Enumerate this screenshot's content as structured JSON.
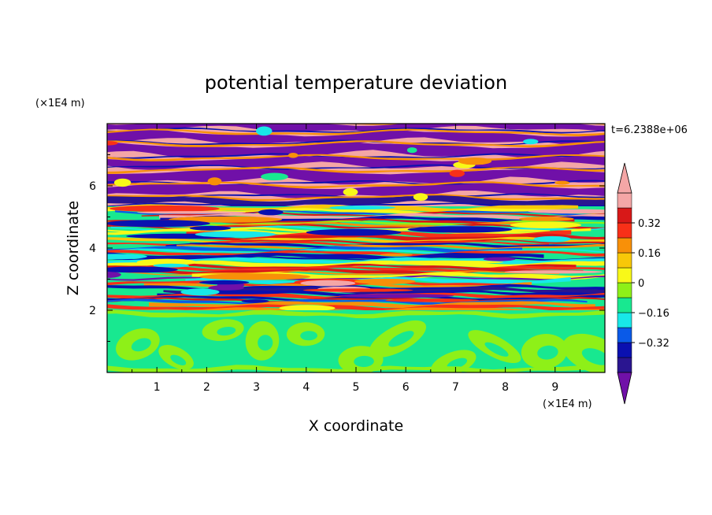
{
  "chart_data": {
    "type": "heatmap",
    "title": "potential temperature deviation",
    "xlabel": "X coordinate",
    "ylabel": "Z coordinate",
    "x_unit": "(×1E4 m)",
    "y_unit": "(×1E4 m)",
    "time_label": "t=6.2388e+06",
    "xlim": [
      0,
      10
    ],
    "ylim": [
      0,
      8
    ],
    "x_ticks": [
      1,
      2,
      3,
      4,
      5,
      6,
      7,
      8,
      9
    ],
    "y_ticks": [
      2,
      4,
      6
    ],
    "grid": false,
    "colorbar": {
      "position": "right",
      "levels": [
        -0.48,
        -0.4,
        -0.32,
        -0.24,
        -0.16,
        -0.08,
        0,
        0.08,
        0.16,
        0.24,
        0.32,
        0.4,
        0.48
      ],
      "labeled_values": [
        "0.32",
        "0.16",
        "0",
        "-0.16",
        "-0.32"
      ],
      "colors": [
        "#7010a8",
        "#2a1590",
        "#0a10b0",
        "#0a5ae8",
        "#18e8e8",
        "#18e890",
        "#8ef018",
        "#f8f818",
        "#f8c808",
        "#f89008",
        "#f83018",
        "#d81818",
        "#f4a6a6"
      ],
      "extend": "both"
    },
    "regions": [
      {
        "name": "lower layer (z < 2)",
        "dominant_values": [
          0,
          0.08
        ],
        "pattern": "green / lime swirling eddies"
      },
      {
        "name": "middle layer (2 < z < 5.3)",
        "dominant_values": [
          -0.48,
          0.48
        ],
        "pattern": "thin multicolour horizontal streaks"
      },
      {
        "name": "upper layer (z > 5.3)",
        "dominant_values": [
          -0.48,
          0.48
        ],
        "pattern": "alternating purple and pink horizontal bands"
      }
    ]
  }
}
